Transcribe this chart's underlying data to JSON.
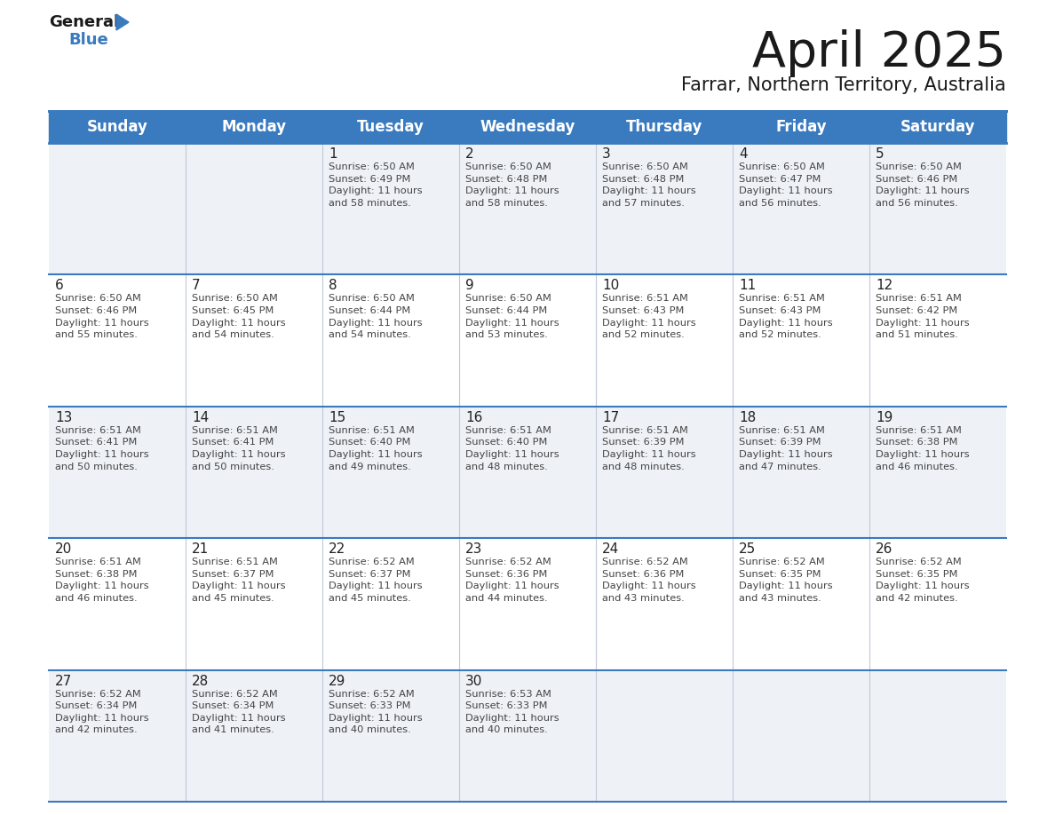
{
  "title": "April 2025",
  "subtitle": "Farrar, Northern Territory, Australia",
  "header_color": "#3a7abf",
  "header_text_color": "#ffffff",
  "cell_bg_even": "#eef2f7",
  "cell_bg_odd": "#ffffff",
  "border_color": "#3a7abf",
  "day_number_color": "#222222",
  "text_color": "#444444",
  "days_of_week": [
    "Sunday",
    "Monday",
    "Tuesday",
    "Wednesday",
    "Thursday",
    "Friday",
    "Saturday"
  ],
  "weeks": [
    [
      {
        "day": "",
        "sunrise": "",
        "sunset": "",
        "daylight": ""
      },
      {
        "day": "",
        "sunrise": "",
        "sunset": "",
        "daylight": ""
      },
      {
        "day": "1",
        "sunrise": "6:50 AM",
        "sunset": "6:49 PM",
        "daylight": "11 hours\nand 58 minutes."
      },
      {
        "day": "2",
        "sunrise": "6:50 AM",
        "sunset": "6:48 PM",
        "daylight": "11 hours\nand 58 minutes."
      },
      {
        "day": "3",
        "sunrise": "6:50 AM",
        "sunset": "6:48 PM",
        "daylight": "11 hours\nand 57 minutes."
      },
      {
        "day": "4",
        "sunrise": "6:50 AM",
        "sunset": "6:47 PM",
        "daylight": "11 hours\nand 56 minutes."
      },
      {
        "day": "5",
        "sunrise": "6:50 AM",
        "sunset": "6:46 PM",
        "daylight": "11 hours\nand 56 minutes."
      }
    ],
    [
      {
        "day": "6",
        "sunrise": "6:50 AM",
        "sunset": "6:46 PM",
        "daylight": "11 hours\nand 55 minutes."
      },
      {
        "day": "7",
        "sunrise": "6:50 AM",
        "sunset": "6:45 PM",
        "daylight": "11 hours\nand 54 minutes."
      },
      {
        "day": "8",
        "sunrise": "6:50 AM",
        "sunset": "6:44 PM",
        "daylight": "11 hours\nand 54 minutes."
      },
      {
        "day": "9",
        "sunrise": "6:50 AM",
        "sunset": "6:44 PM",
        "daylight": "11 hours\nand 53 minutes."
      },
      {
        "day": "10",
        "sunrise": "6:51 AM",
        "sunset": "6:43 PM",
        "daylight": "11 hours\nand 52 minutes."
      },
      {
        "day": "11",
        "sunrise": "6:51 AM",
        "sunset": "6:43 PM",
        "daylight": "11 hours\nand 52 minutes."
      },
      {
        "day": "12",
        "sunrise": "6:51 AM",
        "sunset": "6:42 PM",
        "daylight": "11 hours\nand 51 minutes."
      }
    ],
    [
      {
        "day": "13",
        "sunrise": "6:51 AM",
        "sunset": "6:41 PM",
        "daylight": "11 hours\nand 50 minutes."
      },
      {
        "day": "14",
        "sunrise": "6:51 AM",
        "sunset": "6:41 PM",
        "daylight": "11 hours\nand 50 minutes."
      },
      {
        "day": "15",
        "sunrise": "6:51 AM",
        "sunset": "6:40 PM",
        "daylight": "11 hours\nand 49 minutes."
      },
      {
        "day": "16",
        "sunrise": "6:51 AM",
        "sunset": "6:40 PM",
        "daylight": "11 hours\nand 48 minutes."
      },
      {
        "day": "17",
        "sunrise": "6:51 AM",
        "sunset": "6:39 PM",
        "daylight": "11 hours\nand 48 minutes."
      },
      {
        "day": "18",
        "sunrise": "6:51 AM",
        "sunset": "6:39 PM",
        "daylight": "11 hours\nand 47 minutes."
      },
      {
        "day": "19",
        "sunrise": "6:51 AM",
        "sunset": "6:38 PM",
        "daylight": "11 hours\nand 46 minutes."
      }
    ],
    [
      {
        "day": "20",
        "sunrise": "6:51 AM",
        "sunset": "6:38 PM",
        "daylight": "11 hours\nand 46 minutes."
      },
      {
        "day": "21",
        "sunrise": "6:51 AM",
        "sunset": "6:37 PM",
        "daylight": "11 hours\nand 45 minutes."
      },
      {
        "day": "22",
        "sunrise": "6:52 AM",
        "sunset": "6:37 PM",
        "daylight": "11 hours\nand 45 minutes."
      },
      {
        "day": "23",
        "sunrise": "6:52 AM",
        "sunset": "6:36 PM",
        "daylight": "11 hours\nand 44 minutes."
      },
      {
        "day": "24",
        "sunrise": "6:52 AM",
        "sunset": "6:36 PM",
        "daylight": "11 hours\nand 43 minutes."
      },
      {
        "day": "25",
        "sunrise": "6:52 AM",
        "sunset": "6:35 PM",
        "daylight": "11 hours\nand 43 minutes."
      },
      {
        "day": "26",
        "sunrise": "6:52 AM",
        "sunset": "6:35 PM",
        "daylight": "11 hours\nand 42 minutes."
      }
    ],
    [
      {
        "day": "27",
        "sunrise": "6:52 AM",
        "sunset": "6:34 PM",
        "daylight": "11 hours\nand 42 minutes."
      },
      {
        "day": "28",
        "sunrise": "6:52 AM",
        "sunset": "6:34 PM",
        "daylight": "11 hours\nand 41 minutes."
      },
      {
        "day": "29",
        "sunrise": "6:52 AM",
        "sunset": "6:33 PM",
        "daylight": "11 hours\nand 40 minutes."
      },
      {
        "day": "30",
        "sunrise": "6:53 AM",
        "sunset": "6:33 PM",
        "daylight": "11 hours\nand 40 minutes."
      },
      {
        "day": "",
        "sunrise": "",
        "sunset": "",
        "daylight": ""
      },
      {
        "day": "",
        "sunrise": "",
        "sunset": "",
        "daylight": ""
      },
      {
        "day": "",
        "sunrise": "",
        "sunset": "",
        "daylight": ""
      }
    ]
  ]
}
